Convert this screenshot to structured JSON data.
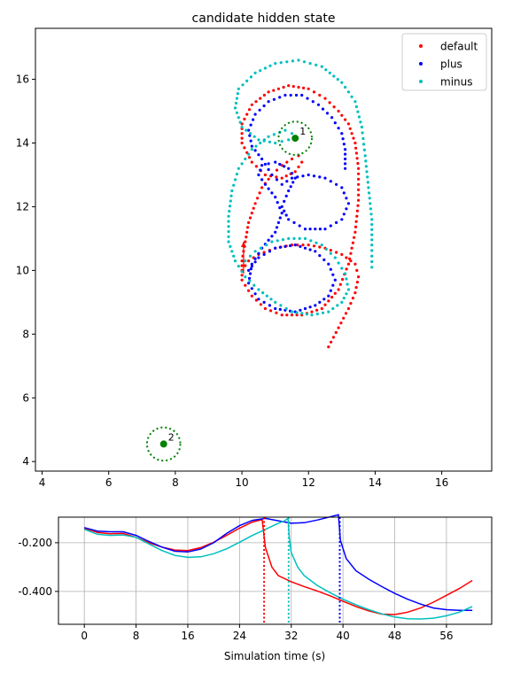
{
  "chart_data": [
    {
      "type": "scatter",
      "title": "candidate hidden state",
      "xlabel": "",
      "ylabel": "",
      "xlim": [
        3.8,
        17.5
      ],
      "ylim": [
        3.7,
        17.6
      ],
      "xticks": [
        4,
        6,
        8,
        10,
        12,
        14,
        16
      ],
      "yticks": [
        4,
        6,
        8,
        10,
        12,
        14,
        16
      ],
      "grid": false,
      "legend_position": "top-right",
      "colors": {
        "default": "#ff0000",
        "plus": "#0000ff",
        "minus": "#00bfbf",
        "target": "#008000"
      },
      "series": [
        {
          "name": "default",
          "points": [
            [
              12.6,
              7.6
            ],
            [
              12.9,
              8.2
            ],
            [
              13.2,
              8.8
            ],
            [
              13.4,
              9.3
            ],
            [
              13.5,
              9.8
            ],
            [
              13.4,
              10.2
            ],
            [
              13.0,
              10.5
            ],
            [
              12.5,
              10.7
            ],
            [
              12.0,
              10.8
            ],
            [
              11.5,
              10.8
            ],
            [
              11.0,
              10.7
            ],
            [
              10.5,
              10.5
            ],
            [
              10.2,
              10.3
            ],
            [
              10.0,
              10.0
            ],
            [
              10.0,
              10.3
            ],
            [
              10.1,
              10.9
            ],
            [
              10.2,
              11.5
            ],
            [
              10.4,
              12.1
            ],
            [
              10.6,
              12.6
            ],
            [
              10.9,
              13.0
            ],
            [
              11.2,
              13.3
            ],
            [
              11.5,
              13.5
            ],
            [
              11.7,
              13.6
            ],
            [
              11.8,
              13.4
            ],
            [
              11.6,
              13.1
            ],
            [
              11.2,
              12.9
            ],
            [
              10.7,
              13.0
            ],
            [
              10.3,
              13.4
            ],
            [
              10.0,
              14.0
            ],
            [
              10.0,
              14.6
            ],
            [
              10.3,
              15.2
            ],
            [
              10.8,
              15.6
            ],
            [
              11.4,
              15.8
            ],
            [
              12.0,
              15.7
            ],
            [
              12.5,
              15.4
            ],
            [
              12.9,
              15.0
            ],
            [
              13.2,
              14.6
            ],
            [
              13.4,
              14.0
            ],
            [
              13.5,
              13.2
            ],
            [
              13.5,
              12.2
            ],
            [
              13.4,
              11.2
            ],
            [
              13.2,
              10.2
            ],
            [
              12.9,
              9.4
            ],
            [
              12.4,
              8.8
            ],
            [
              11.8,
              8.6
            ],
            [
              11.2,
              8.6
            ],
            [
              10.7,
              8.8
            ],
            [
              10.3,
              9.2
            ],
            [
              10.0,
              9.7
            ],
            [
              10.0,
              10.0
            ]
          ]
        },
        {
          "name": "plus",
          "points": [
            [
              10.2,
              10.0
            ],
            [
              10.5,
              10.4
            ],
            [
              11.0,
              10.7
            ],
            [
              11.6,
              10.8
            ],
            [
              12.2,
              10.6
            ],
            [
              12.6,
              10.2
            ],
            [
              12.8,
              9.7
            ],
            [
              12.6,
              9.2
            ],
            [
              12.2,
              8.9
            ],
            [
              11.6,
              8.7
            ],
            [
              11.0,
              8.8
            ],
            [
              10.5,
              9.1
            ],
            [
              10.2,
              9.6
            ],
            [
              10.3,
              10.2
            ],
            [
              10.6,
              10.7
            ],
            [
              11.0,
              11.2
            ],
            [
              11.2,
              11.8
            ],
            [
              11.0,
              12.3
            ],
            [
              10.7,
              12.7
            ],
            [
              10.5,
              13.0
            ],
            [
              10.6,
              13.3
            ],
            [
              11.0,
              13.4
            ],
            [
              11.4,
              13.2
            ],
            [
              11.6,
              12.9
            ],
            [
              11.4,
              12.5
            ],
            [
              11.2,
              12.0
            ],
            [
              11.4,
              11.6
            ],
            [
              11.9,
              11.3
            ],
            [
              12.5,
              11.3
            ],
            [
              13.0,
              11.6
            ],
            [
              13.2,
              12.1
            ],
            [
              13.0,
              12.6
            ],
            [
              12.5,
              12.9
            ],
            [
              12.0,
              13.0
            ],
            [
              11.5,
              12.9
            ],
            [
              11.2,
              12.7
            ],
            [
              10.9,
              13.0
            ],
            [
              10.6,
              13.5
            ],
            [
              10.3,
              13.9
            ],
            [
              10.2,
              14.4
            ],
            [
              10.4,
              14.9
            ],
            [
              10.8,
              15.3
            ],
            [
              11.3,
              15.5
            ],
            [
              11.8,
              15.5
            ],
            [
              12.3,
              15.2
            ],
            [
              12.7,
              14.8
            ],
            [
              13.0,
              14.3
            ],
            [
              13.1,
              13.8
            ],
            [
              13.1,
              13.2
            ]
          ]
        },
        {
          "name": "minus",
          "points": [
            [
              13.9,
              10.1
            ],
            [
              13.9,
              10.8
            ],
            [
              13.9,
              11.6
            ],
            [
              13.8,
              12.6
            ],
            [
              13.7,
              13.6
            ],
            [
              13.6,
              14.5
            ],
            [
              13.4,
              15.3
            ],
            [
              13.0,
              15.9
            ],
            [
              12.4,
              16.4
            ],
            [
              11.7,
              16.6
            ],
            [
              11.0,
              16.5
            ],
            [
              10.4,
              16.2
            ],
            [
              9.9,
              15.7
            ],
            [
              9.8,
              15.1
            ],
            [
              10.0,
              14.5
            ],
            [
              10.5,
              14.1
            ],
            [
              11.0,
              14.0
            ],
            [
              11.4,
              14.1
            ],
            [
              11.5,
              14.3
            ],
            [
              11.3,
              14.4
            ],
            [
              10.8,
              14.2
            ],
            [
              10.3,
              13.8
            ],
            [
              9.9,
              13.2
            ],
            [
              9.7,
              12.5
            ],
            [
              9.6,
              11.7
            ],
            [
              9.6,
              10.9
            ],
            [
              9.8,
              10.3
            ],
            [
              10.1,
              9.8
            ],
            [
              10.5,
              9.4
            ],
            [
              11.0,
              9.0
            ],
            [
              11.5,
              8.7
            ],
            [
              12.1,
              8.6
            ],
            [
              12.6,
              8.7
            ],
            [
              13.0,
              9.0
            ],
            [
              13.2,
              9.4
            ],
            [
              13.1,
              9.9
            ],
            [
              12.8,
              10.4
            ],
            [
              12.4,
              10.8
            ],
            [
              11.9,
              11.0
            ],
            [
              11.4,
              11.0
            ],
            [
              10.9,
              10.9
            ],
            [
              10.4,
              10.6
            ],
            [
              10.1,
              10.3
            ]
          ]
        }
      ],
      "targets": [
        {
          "label": "1",
          "x": 11.6,
          "y": 14.15,
          "radius": 0.5
        },
        {
          "label": "2",
          "x": 7.65,
          "y": 4.55,
          "radius": 0.5
        }
      ],
      "arrow": {
        "x": 10.05,
        "y_from": 9.9,
        "y_to": 10.9
      }
    },
    {
      "type": "line",
      "xlabel": "Simulation time (s)",
      "ylabel": "",
      "xlim": [
        -4,
        63
      ],
      "ylim": [
        -0.535,
        -0.095
      ],
      "xticks": [
        0,
        8,
        16,
        24,
        32,
        40,
        48,
        56
      ],
      "yticks": [
        -0.2,
        -0.4
      ],
      "ytick_labels": [
        "-0.200",
        "-0.400"
      ],
      "grid": true,
      "series": [
        {
          "color": "#ff0000",
          "points": [
            [
              0,
              -0.14
            ],
            [
              2,
              -0.158
            ],
            [
              4,
              -0.163
            ],
            [
              6,
              -0.162
            ],
            [
              8,
              -0.178
            ],
            [
              10,
              -0.2
            ],
            [
              12,
              -0.218
            ],
            [
              14,
              -0.23
            ],
            [
              16,
              -0.232
            ],
            [
              18,
              -0.22
            ],
            [
              20,
              -0.198
            ],
            [
              22,
              -0.17
            ],
            [
              24,
              -0.14
            ],
            [
              26,
              -0.115
            ],
            [
              27.5,
              -0.105
            ],
            [
              28,
              -0.22
            ],
            [
              29,
              -0.3
            ],
            [
              30,
              -0.335
            ],
            [
              32,
              -0.36
            ],
            [
              34,
              -0.38
            ],
            [
              36,
              -0.398
            ],
            [
              38,
              -0.418
            ],
            [
              40,
              -0.44
            ],
            [
              42,
              -0.462
            ],
            [
              44,
              -0.48
            ],
            [
              46,
              -0.493
            ],
            [
              48,
              -0.495
            ],
            [
              50,
              -0.485
            ],
            [
              52,
              -0.468
            ],
            [
              54,
              -0.444
            ],
            [
              56,
              -0.416
            ],
            [
              58,
              -0.388
            ],
            [
              60,
              -0.355
            ]
          ],
          "vline": 27.8
        },
        {
          "color": "#0000ff",
          "points": [
            [
              0,
              -0.138
            ],
            [
              2,
              -0.152
            ],
            [
              4,
              -0.155
            ],
            [
              6,
              -0.155
            ],
            [
              8,
              -0.17
            ],
            [
              10,
              -0.195
            ],
            [
              12,
              -0.218
            ],
            [
              14,
              -0.235
            ],
            [
              16,
              -0.238
            ],
            [
              18,
              -0.226
            ],
            [
              20,
              -0.2
            ],
            [
              22,
              -0.162
            ],
            [
              24,
              -0.13
            ],
            [
              26,
              -0.108
            ],
            [
              28,
              -0.1
            ],
            [
              30,
              -0.11
            ],
            [
              32,
              -0.12
            ],
            [
              34,
              -0.118
            ],
            [
              36,
              -0.107
            ],
            [
              38,
              -0.094
            ],
            [
              39.3,
              -0.085
            ],
            [
              39.6,
              -0.19
            ],
            [
              40.5,
              -0.265
            ],
            [
              42,
              -0.315
            ],
            [
              44,
              -0.35
            ],
            [
              46,
              -0.38
            ],
            [
              48,
              -0.408
            ],
            [
              50,
              -0.432
            ],
            [
              52,
              -0.452
            ],
            [
              54,
              -0.468
            ],
            [
              56,
              -0.475
            ],
            [
              58,
              -0.478
            ],
            [
              60,
              -0.478
            ]
          ],
          "vline": 39.5
        },
        {
          "color": "#00bfbf",
          "points": [
            [
              0,
              -0.145
            ],
            [
              2,
              -0.165
            ],
            [
              4,
              -0.17
            ],
            [
              6,
              -0.168
            ],
            [
              8,
              -0.178
            ],
            [
              10,
              -0.205
            ],
            [
              12,
              -0.232
            ],
            [
              14,
              -0.252
            ],
            [
              16,
              -0.26
            ],
            [
              18,
              -0.258
            ],
            [
              20,
              -0.245
            ],
            [
              22,
              -0.225
            ],
            [
              24,
              -0.198
            ],
            [
              26,
              -0.17
            ],
            [
              28,
              -0.145
            ],
            [
              30,
              -0.12
            ],
            [
              31,
              -0.11
            ],
            [
              31.5,
              -0.1
            ],
            [
              31.7,
              -0.18
            ],
            [
              32,
              -0.24
            ],
            [
              33,
              -0.3
            ],
            [
              34,
              -0.335
            ],
            [
              36,
              -0.375
            ],
            [
              38,
              -0.405
            ],
            [
              40,
              -0.432
            ],
            [
              42,
              -0.455
            ],
            [
              44,
              -0.475
            ],
            [
              46,
              -0.492
            ],
            [
              48,
              -0.505
            ],
            [
              50,
              -0.512
            ],
            [
              52,
              -0.513
            ],
            [
              54,
              -0.51
            ],
            [
              56,
              -0.5
            ],
            [
              58,
              -0.485
            ],
            [
              60,
              -0.462
            ]
          ],
          "vline": 31.6
        }
      ]
    }
  ]
}
